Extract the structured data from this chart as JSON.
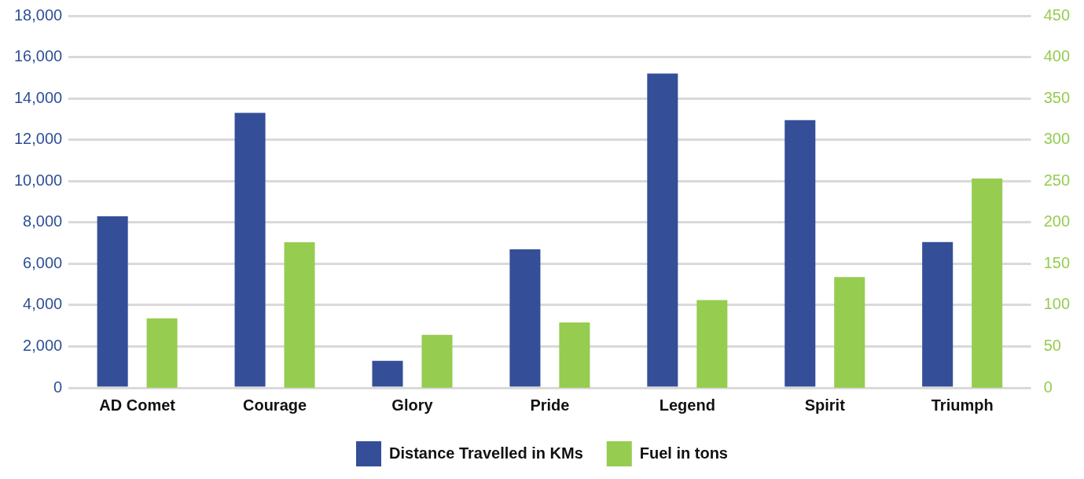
{
  "chart_data": {
    "type": "bar",
    "categories": [
      "AD Comet",
      "Courage",
      "Glory",
      "Pride",
      "Legend",
      "Spirit",
      "Triumph"
    ],
    "series": [
      {
        "name": "Distance Travelled in KMs",
        "color": "#344e98",
        "values": [
          8300,
          13300,
          1300,
          6700,
          15200,
          12950,
          7050
        ]
      },
      {
        "name": "Fuel in tons",
        "color": "#96cc50",
        "axis": "y2",
        "values": [
          84,
          176,
          64,
          79,
          106,
          134,
          253
        ]
      }
    ],
    "ylim": [
      0,
      18000
    ],
    "yticks": [
      0,
      {
        "value": 2000,
        "label": "2,000"
      },
      {
        "value": 4000,
        "label": "4,000"
      },
      {
        "value": 6000,
        "label": "6,000"
      },
      {
        "value": 8000,
        "label": "8,000"
      },
      {
        "value": 10000,
        "label": "10,000"
      },
      {
        "value": 12000,
        "label": "12,000"
      },
      {
        "value": 14000,
        "label": "14,000"
      },
      {
        "value": 16000,
        "label": "16,000"
      },
      {
        "value": 18000,
        "label": "18,000"
      }
    ],
    "y2lim": [
      0,
      450
    ],
    "y2ticks": [
      0,
      50,
      100,
      150,
      200,
      250,
      300,
      350,
      400,
      450
    ],
    "grid": "y",
    "legend": "bottom"
  }
}
